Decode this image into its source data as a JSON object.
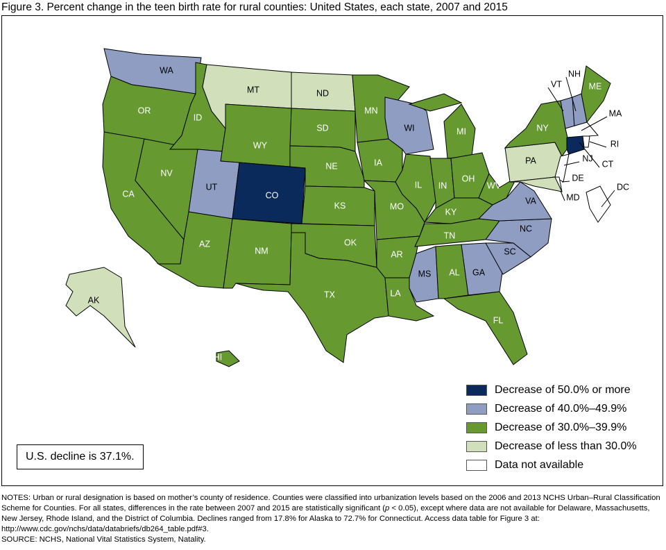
{
  "title": "Figure 3. Percent change in the teen birth rate for rural counties: United States, each state, 2007 and 2015",
  "colors": {
    "c50": "#0b2a5c",
    "c40": "#8f9dc3",
    "c30": "#669a31",
    "clt30": "#d1dfbb",
    "na": "#ffffff"
  },
  "legend": [
    {
      "key": "c50",
      "label": "Decrease of 50.0% or more"
    },
    {
      "key": "c40",
      "label": "Decrease of 40.0%–49.9%"
    },
    {
      "key": "c30",
      "label": "Decrease of 30.0%–39.9%"
    },
    {
      "key": "clt30",
      "label": "Decrease of less than 30.0%"
    },
    {
      "key": "na",
      "label": "Data not available"
    }
  ],
  "us_decline": "U.S. decline is 37.1%.",
  "states": {
    "WA": "c40",
    "OR": "c30",
    "CA": "c30",
    "NV": "c30",
    "ID": "c30",
    "MT": "clt30",
    "WY": "c30",
    "UT": "c40",
    "CO": "c50",
    "AZ": "c30",
    "NM": "c30",
    "ND": "clt30",
    "SD": "c30",
    "NE": "c30",
    "KS": "c30",
    "OK": "c30",
    "TX": "c30",
    "MN": "c30",
    "IA": "c30",
    "MO": "c30",
    "AR": "c30",
    "LA": "c30",
    "WI": "c40",
    "IL": "c30",
    "IN": "c30",
    "MI": "c30",
    "OH": "c30",
    "KY": "c30",
    "TN": "c30",
    "MS": "c40",
    "AL": "c30",
    "GA": "c40",
    "FL": "c30",
    "SC": "c40",
    "NC": "c40",
    "VA": "c40",
    "WV": "c30",
    "PA": "clt30",
    "NY": "c30",
    "VT": "c40",
    "NH": "c40",
    "ME": "c30",
    "MA": "na",
    "CT": "c50",
    "RI": "na",
    "NJ": "na",
    "DE": "na",
    "MD": "clt30",
    "AK": "clt30",
    "HI": "c30",
    "DC": "na"
  },
  "notes": {
    "p1": "NOTES: Urban or rural designation is based on mother’s county of residence. Counties were classified into urbanization levels based on the 2006 and 2013 NCHS Urban–Rural Classification Scheme for Counties. For all states, differences in the rate between 2007 and 2015 are statistically significant (",
    "p_sym": "p",
    "p2": " < 0.05), except where data are not available for Delaware, Massachusetts, New Jersey, Rhode Island, and the District of Columbia. Declines ranged from 17.8% for Alaska to 72.7% for Connecticut. Access data table for Figure 3 at: http://www.cdc.gov/nchs/data/databriefs/db264_table.pdf#3.",
    "source": "SOURCE: NCHS, National Vital Statistics System, Natality."
  }
}
